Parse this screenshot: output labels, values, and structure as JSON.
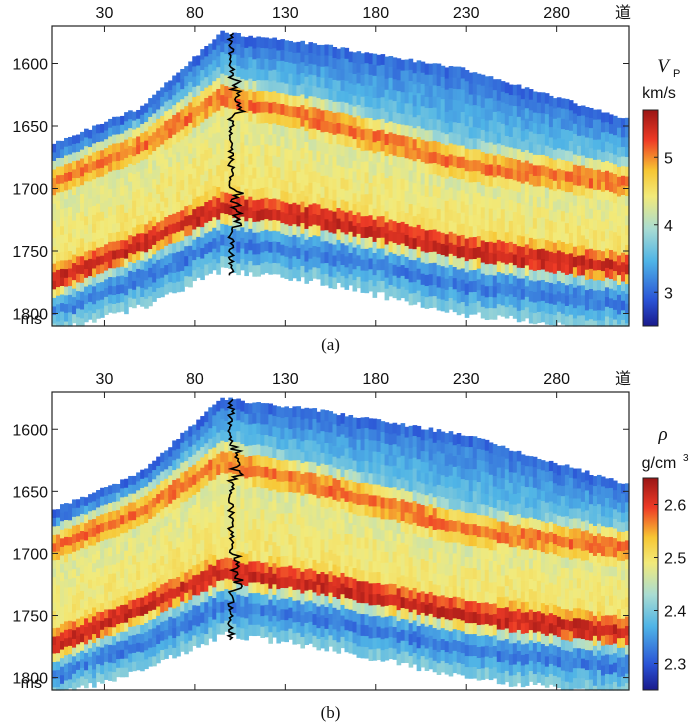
{
  "chart_data": [
    {
      "id": "a",
      "type": "heatmap",
      "caption": "(a)",
      "property": "P-wave velocity",
      "symbol": "V",
      "symbol_sub": "P",
      "unit": "km/s",
      "x_label": "道",
      "x_ticks": [
        30,
        80,
        130,
        180,
        230,
        280
      ],
      "x_range": [
        1,
        320
      ],
      "y_label": "ms",
      "y_ticks": [
        1600,
        1650,
        1700,
        1750,
        1800
      ],
      "y_range": [
        1570,
        1810
      ],
      "colorbar_range": [
        2.5,
        5.7
      ],
      "colorbar_ticks": [
        3,
        4,
        5
      ],
      "horizons_ms": {
        "top": [
          1665,
          1635,
          1575,
          1585,
          1605,
          1645
        ],
        "upper_high": [
          1695,
          1665,
          1625,
          1645,
          1680,
          1695
        ],
        "lower_high": [
          1775,
          1745,
          1715,
          1725,
          1750,
          1765
        ],
        "bottom": [
          1815,
          1795,
          1765,
          1775,
          1800,
          1815
        ],
        "at_traces": [
          1,
          50,
          95,
          150,
          230,
          320
        ]
      },
      "well_log_trace": 100
    },
    {
      "id": "b",
      "type": "heatmap",
      "caption": "(b)",
      "property": "density",
      "symbol": "ρ",
      "unit_main": "g/cm",
      "unit_sup": "3",
      "x_label": "道",
      "x_ticks": [
        30,
        80,
        130,
        180,
        230,
        280
      ],
      "x_range": [
        1,
        320
      ],
      "y_label": "ms",
      "y_ticks": [
        1600,
        1650,
        1700,
        1750,
        1800
      ],
      "y_range": [
        1570,
        1810
      ],
      "colorbar_range": [
        2.25,
        2.65
      ],
      "colorbar_ticks": [
        2.3,
        2.4,
        2.5,
        2.6
      ],
      "horizons_ms": {
        "top": [
          1665,
          1635,
          1575,
          1585,
          1605,
          1645
        ],
        "upper_high": [
          1695,
          1665,
          1625,
          1645,
          1680,
          1695
        ],
        "lower_high": [
          1775,
          1745,
          1715,
          1725,
          1750,
          1765
        ],
        "bottom": [
          1815,
          1795,
          1765,
          1775,
          1800,
          1815
        ],
        "at_traces": [
          1,
          50,
          95,
          150,
          230,
          320
        ]
      },
      "well_log_trace": 100
    }
  ]
}
